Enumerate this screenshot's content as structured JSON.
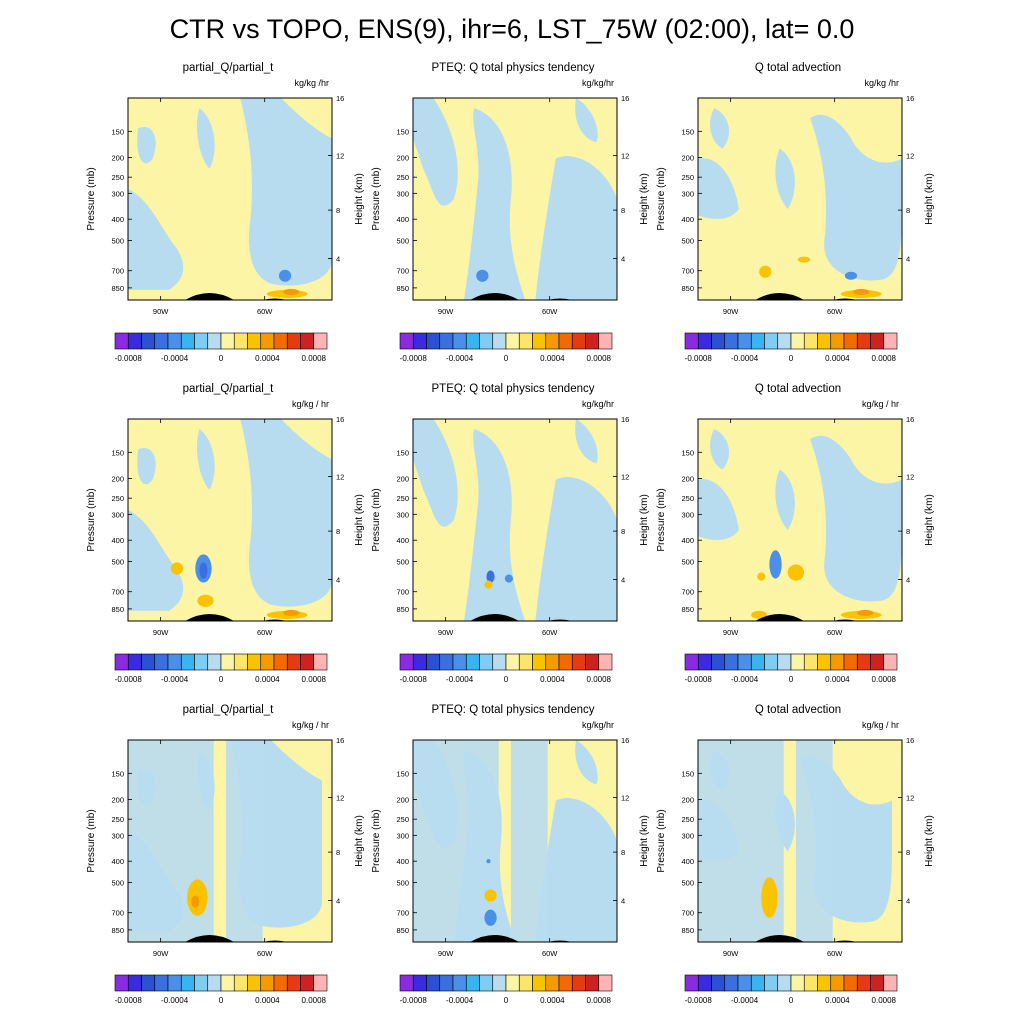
{
  "title": "CTR vs TOPO, ENS(9), ihr=6, LST_75W (02:00), lat=  0.0",
  "colors": {
    "positive_fill": "#fbf5a5",
    "negative_fill": "#b8dcef",
    "terrain": "#000000",
    "colorbar": [
      "#8a2be2",
      "#3b2be0",
      "#2b50d4",
      "#3a6fe0",
      "#4a90e8",
      "#38b4f0",
      "#7fcdf2",
      "#b8dcef",
      "#fbf5a5",
      "#fde56a",
      "#f9c300",
      "#f59a00",
      "#f26a00",
      "#e53a14",
      "#cc2222",
      "#ffb3b3"
    ]
  },
  "colorbar_labels": [
    "-0.0008",
    "-0.0004",
    "0",
    "0.0004",
    "0.0008"
  ],
  "axes": {
    "left_label": "Pressure (mb)",
    "right_label": "Height (km)",
    "pressure_ticks": [
      "150",
      "200",
      "250",
      "300",
      "400",
      "500",
      "700",
      "850"
    ],
    "height_ticks": [
      "16",
      "12",
      "8",
      "4"
    ],
    "x_ticks": [
      "90W",
      "60W"
    ]
  },
  "panels": [
    {
      "title": "partial_Q/partial_t",
      "units": "kg/kg /hr"
    },
    {
      "title": "PTEQ: Q total physics tendency",
      "units": "kg/kg/hr"
    },
    {
      "title": "Q total advection",
      "units": "kg/kg /hr"
    },
    {
      "title": "partial_Q/partial_t",
      "units": "kg/kg / hr"
    },
    {
      "title": "PTEQ: Q total physics tendency",
      "units": "kg/kg/hr"
    },
    {
      "title": "Q total advection",
      "units": "kg/kg / hr"
    },
    {
      "title": "partial_Q/partial_t",
      "units": "kg/kg / hr"
    },
    {
      "title": "PTEQ: Q total physics tendency",
      "units": "kg/kg/hr"
    },
    {
      "title": "Q total advection",
      "units": "kg/kg / hr"
    }
  ],
  "chart_data": [
    {
      "type": "heatmap",
      "title": "partial_Q/partial_t",
      "units": "kg/kg /hr",
      "ylabel": "Pressure (mb)",
      "y2label": "Height (km)",
      "x_ticks": [
        "90W",
        "60W"
      ],
      "y_ticks": [
        150,
        200,
        250,
        300,
        400,
        500,
        700,
        850
      ],
      "y2_ticks": [
        16,
        12,
        8,
        4
      ],
      "color_range": [
        -0.0008,
        0.0008
      ]
    },
    {
      "type": "heatmap",
      "title": "PTEQ: Q total physics tendency",
      "units": "kg/kg/hr",
      "ylabel": "Pressure (mb)",
      "y2label": "Height (km)",
      "x_ticks": [
        "90W",
        "60W"
      ],
      "y_ticks": [
        150,
        200,
        250,
        300,
        400,
        500,
        700,
        850
      ],
      "y2_ticks": [
        16,
        12,
        8,
        4
      ],
      "color_range": [
        -0.0008,
        0.0008
      ]
    },
    {
      "type": "heatmap",
      "title": "Q total advection",
      "units": "kg/kg /hr",
      "ylabel": "Pressure (mb)",
      "y2label": "Height (km)",
      "x_ticks": [
        "90W",
        "60W"
      ],
      "y_ticks": [
        150,
        200,
        250,
        300,
        400,
        500,
        700,
        850
      ],
      "y2_ticks": [
        16,
        12,
        8,
        4
      ],
      "color_range": [
        -0.0008,
        0.0008
      ]
    },
    {
      "type": "heatmap",
      "title": "partial_Q/partial_t",
      "units": "kg/kg / hr",
      "ylabel": "Pressure (mb)",
      "y2label": "Height (km)",
      "x_ticks": [
        "90W",
        "60W"
      ],
      "y_ticks": [
        150,
        200,
        250,
        300,
        400,
        500,
        700,
        850
      ],
      "y2_ticks": [
        16,
        12,
        8,
        4
      ],
      "color_range": [
        -0.0008,
        0.0008
      ]
    },
    {
      "type": "heatmap",
      "title": "PTEQ: Q total physics tendency",
      "units": "kg/kg/hr",
      "ylabel": "Pressure (mb)",
      "y2label": "Height (km)",
      "x_ticks": [
        "90W",
        "60W"
      ],
      "y_ticks": [
        150,
        200,
        250,
        300,
        400,
        500,
        700,
        850
      ],
      "y2_ticks": [
        16,
        12,
        8,
        4
      ],
      "color_range": [
        -0.0008,
        0.0008
      ]
    },
    {
      "type": "heatmap",
      "title": "Q total advection",
      "units": "kg/kg / hr",
      "ylabel": "Pressure (mb)",
      "y2label": "Height (km)",
      "x_ticks": [
        "90W",
        "60W"
      ],
      "y_ticks": [
        150,
        200,
        250,
        300,
        400,
        500,
        700,
        850
      ],
      "y2_ticks": [
        16,
        12,
        8,
        4
      ],
      "color_range": [
        -0.0008,
        0.0008
      ]
    },
    {
      "type": "heatmap",
      "title": "partial_Q/partial_t",
      "units": "kg/kg / hr",
      "ylabel": "Pressure (mb)",
      "y2label": "Height (km)",
      "x_ticks": [
        "90W",
        "60W"
      ],
      "y_ticks": [
        150,
        200,
        250,
        300,
        400,
        500,
        700,
        850
      ],
      "y2_ticks": [
        16,
        12,
        8,
        4
      ],
      "color_range": [
        -0.0008,
        0.0008
      ]
    },
    {
      "type": "heatmap",
      "title": "PTEQ: Q total physics tendency",
      "units": "kg/kg/hr",
      "ylabel": "Pressure (mb)",
      "y2label": "Height (km)",
      "x_ticks": [
        "90W",
        "60W"
      ],
      "y_ticks": [
        150,
        200,
        250,
        300,
        400,
        500,
        700,
        850
      ],
      "y2_ticks": [
        16,
        12,
        8,
        4
      ],
      "color_range": [
        -0.0008,
        0.0008
      ]
    },
    {
      "type": "heatmap",
      "title": "Q total advection",
      "units": "kg/kg / hr",
      "ylabel": "Pressure (mb)",
      "y2label": "Height (km)",
      "x_ticks": [
        "90W",
        "60W"
      ],
      "y_ticks": [
        150,
        200,
        250,
        300,
        400,
        500,
        700,
        850
      ],
      "y2_ticks": [
        16,
        12,
        8,
        4
      ],
      "color_range": [
        -0.0008,
        0.0008
      ]
    }
  ]
}
